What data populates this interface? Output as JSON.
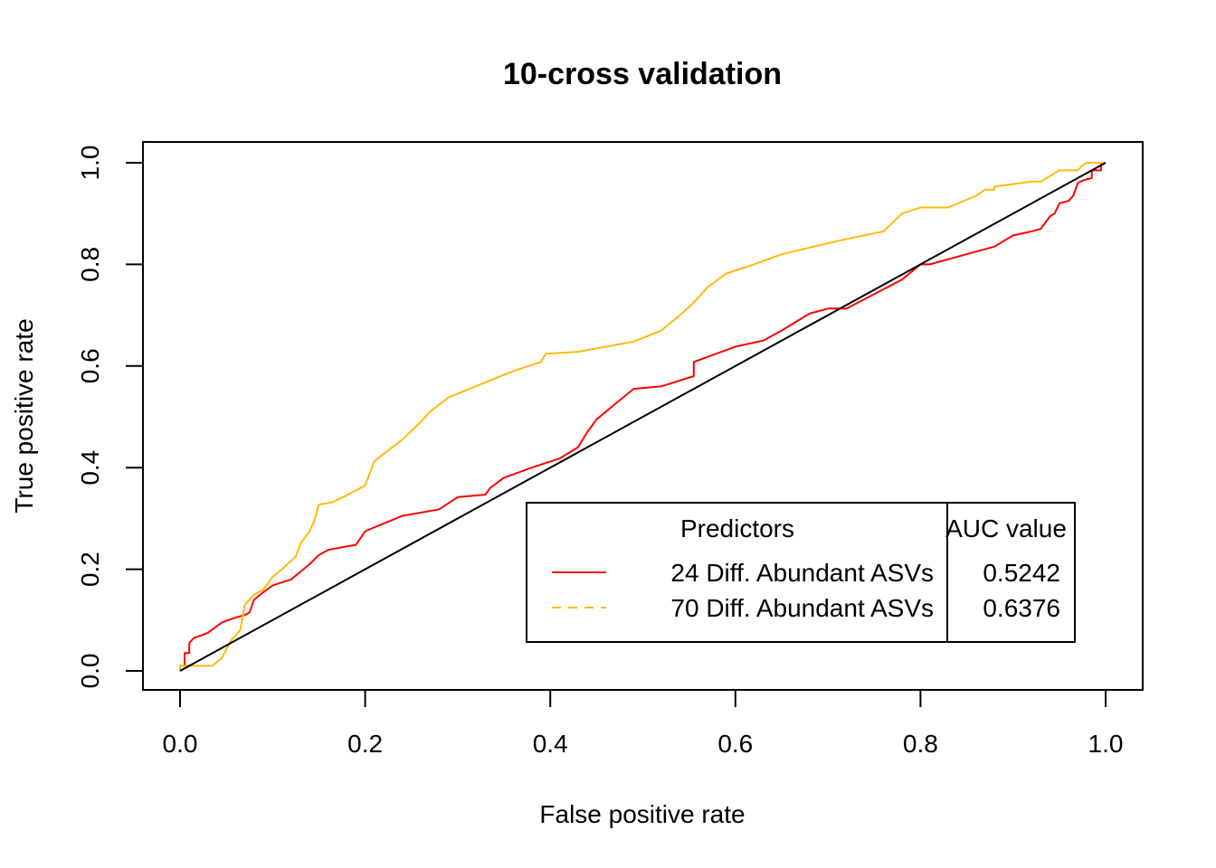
{
  "chart_data": {
    "type": "line",
    "title": "10-cross validation",
    "xlabel": "False positive rate",
    "ylabel": "True positive rate",
    "xlim": [
      0,
      1
    ],
    "ylim": [
      0,
      1
    ],
    "x_ticks": [
      "0.0",
      "0.2",
      "0.4",
      "0.6",
      "0.8",
      "1.0"
    ],
    "y_ticks": [
      "0.0",
      "0.2",
      "0.4",
      "0.6",
      "0.8",
      "1.0"
    ],
    "grid": false,
    "legend": {
      "position": "bottom-right",
      "header_predictors": "Predictors",
      "header_auc": "AUC value",
      "entries": [
        {
          "label": "24 Diff. Abundant ASVs",
          "auc": "0.5242",
          "color": "#ff0000",
          "line_style": "solid"
        },
        {
          "label": "70 Diff. Abundant ASVs",
          "auc": "0.6376",
          "color": "#ffb90f",
          "line_style": "dashed"
        }
      ]
    },
    "series": [
      {
        "color": "#ff0000",
        "points": [
          [
            0,
            0
          ],
          [
            0,
            0.01
          ],
          [
            0.005,
            0.01
          ],
          [
            0.005,
            0.035
          ],
          [
            0.01,
            0.035
          ],
          [
            0.01,
            0.055
          ],
          [
            0.015,
            0.065
          ],
          [
            0.02,
            0.068
          ],
          [
            0.03,
            0.075
          ],
          [
            0.045,
            0.095
          ],
          [
            0.06,
            0.105
          ],
          [
            0.07,
            0.11
          ],
          [
            0.075,
            0.115
          ],
          [
            0.08,
            0.14
          ],
          [
            0.09,
            0.155
          ],
          [
            0.1,
            0.168
          ],
          [
            0.12,
            0.18
          ],
          [
            0.14,
            0.21
          ],
          [
            0.15,
            0.228
          ],
          [
            0.16,
            0.238
          ],
          [
            0.18,
            0.245
          ],
          [
            0.19,
            0.248
          ],
          [
            0.2,
            0.275
          ],
          [
            0.24,
            0.305
          ],
          [
            0.28,
            0.318
          ],
          [
            0.3,
            0.342
          ],
          [
            0.33,
            0.347
          ],
          [
            0.335,
            0.36
          ],
          [
            0.35,
            0.38
          ],
          [
            0.38,
            0.4
          ],
          [
            0.41,
            0.418
          ],
          [
            0.43,
            0.44
          ],
          [
            0.44,
            0.47
          ],
          [
            0.45,
            0.495
          ],
          [
            0.47,
            0.525
          ],
          [
            0.49,
            0.555
          ],
          [
            0.52,
            0.56
          ],
          [
            0.555,
            0.58
          ],
          [
            0.555,
            0.608
          ],
          [
            0.6,
            0.638
          ],
          [
            0.63,
            0.65
          ],
          [
            0.65,
            0.67
          ],
          [
            0.68,
            0.703
          ],
          [
            0.7,
            0.713
          ],
          [
            0.72,
            0.713
          ],
          [
            0.78,
            0.77
          ],
          [
            0.8,
            0.8
          ],
          [
            0.81,
            0.8
          ],
          [
            0.88,
            0.835
          ],
          [
            0.9,
            0.857
          ],
          [
            0.92,
            0.865
          ],
          [
            0.93,
            0.87
          ],
          [
            0.94,
            0.895
          ],
          [
            0.945,
            0.9
          ],
          [
            0.95,
            0.92
          ],
          [
            0.96,
            0.925
          ],
          [
            0.965,
            0.935
          ],
          [
            0.97,
            0.96
          ],
          [
            0.975,
            0.965
          ],
          [
            0.985,
            0.97
          ],
          [
            0.985,
            0.985
          ],
          [
            0.995,
            0.985
          ],
          [
            0.995,
            1
          ],
          [
            1,
            1
          ]
        ]
      },
      {
        "color": "#ffb90f",
        "points": [
          [
            0,
            0
          ],
          [
            0,
            0.01
          ],
          [
            0.035,
            0.01
          ],
          [
            0.045,
            0.025
          ],
          [
            0.055,
            0.06
          ],
          [
            0.065,
            0.08
          ],
          [
            0.07,
            0.13
          ],
          [
            0.08,
            0.15
          ],
          [
            0.09,
            0.16
          ],
          [
            0.1,
            0.185
          ],
          [
            0.11,
            0.2
          ],
          [
            0.125,
            0.225
          ],
          [
            0.13,
            0.25
          ],
          [
            0.14,
            0.275
          ],
          [
            0.145,
            0.295
          ],
          [
            0.15,
            0.327
          ],
          [
            0.165,
            0.332
          ],
          [
            0.19,
            0.355
          ],
          [
            0.2,
            0.365
          ],
          [
            0.21,
            0.413
          ],
          [
            0.24,
            0.455
          ],
          [
            0.26,
            0.49
          ],
          [
            0.27,
            0.51
          ],
          [
            0.29,
            0.538
          ],
          [
            0.33,
            0.568
          ],
          [
            0.36,
            0.59
          ],
          [
            0.39,
            0.608
          ],
          [
            0.395,
            0.624
          ],
          [
            0.43,
            0.628
          ],
          [
            0.49,
            0.648
          ],
          [
            0.52,
            0.67
          ],
          [
            0.54,
            0.7
          ],
          [
            0.555,
            0.725
          ],
          [
            0.57,
            0.755
          ],
          [
            0.59,
            0.782
          ],
          [
            0.62,
            0.8
          ],
          [
            0.65,
            0.82
          ],
          [
            0.68,
            0.833
          ],
          [
            0.72,
            0.85
          ],
          [
            0.76,
            0.865
          ],
          [
            0.78,
            0.9
          ],
          [
            0.8,
            0.912
          ],
          [
            0.83,
            0.912
          ],
          [
            0.86,
            0.935
          ],
          [
            0.87,
            0.947
          ],
          [
            0.88,
            0.947
          ],
          [
            0.88,
            0.953
          ],
          [
            0.9,
            0.958
          ],
          [
            0.92,
            0.963
          ],
          [
            0.93,
            0.963
          ],
          [
            0.95,
            0.985
          ],
          [
            0.97,
            0.985
          ],
          [
            0.975,
            0.995
          ],
          [
            0.98,
            1
          ],
          [
            1,
            1
          ]
        ]
      },
      {
        "color": "#000000",
        "points": [
          [
            0,
            0
          ],
          [
            1,
            1
          ]
        ]
      }
    ]
  }
}
